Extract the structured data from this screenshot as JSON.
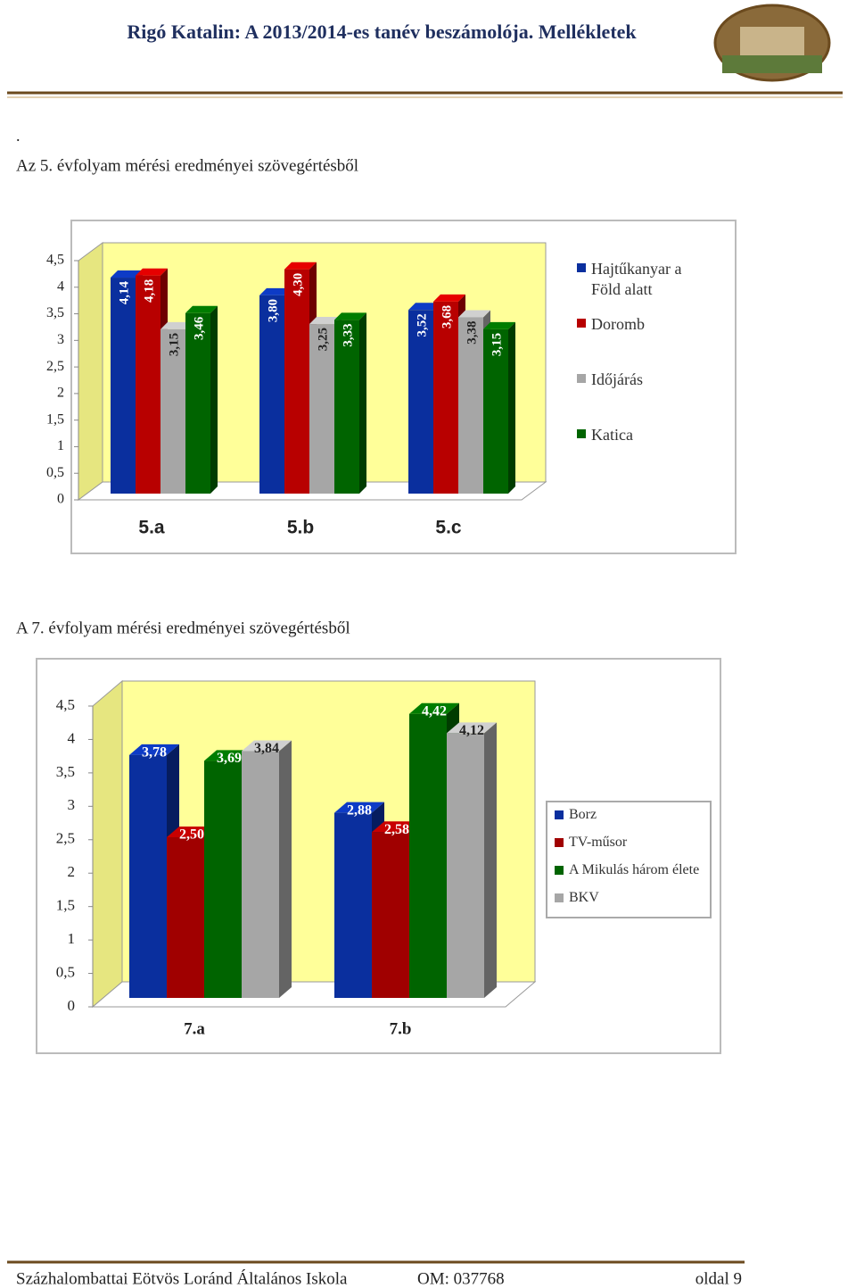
{
  "header": {
    "title": "Rigó Katalin: A 2013/2014-es tanév beszámolója. Mellékletek"
  },
  "dot": ".",
  "section_1": "Az 5. évfolyam mérési eredményei szövegértésből",
  "section_2": "A 7. évfolyam mérési eredményei szövegértésből",
  "chart_data": [
    {
      "type": "bar",
      "categories": [
        "5.a",
        "5.b",
        "5.c"
      ],
      "series": [
        {
          "name": "Hajtűkanyar a Föld alatt",
          "color": "#0a2f9e",
          "values": [
            4.14,
            3.8,
            3.52
          ],
          "value_labels": [
            "4,14",
            "3,80",
            "3,52"
          ]
        },
        {
          "name": "Doromb",
          "color": "#b80000",
          "values": [
            4.18,
            4.3,
            3.68
          ],
          "value_labels": [
            "4,18",
            "4,30",
            "3,68"
          ]
        },
        {
          "name": "Időjárás",
          "color": "#a6a6a6",
          "values": [
            3.15,
            3.25,
            3.38
          ],
          "value_labels": [
            "3,15",
            "3,25",
            "3,38"
          ]
        },
        {
          "name": "Katica",
          "color": "#006400",
          "values": [
            3.46,
            3.33,
            3.15
          ],
          "value_labels": [
            "3,46",
            "3,33",
            "3,15"
          ]
        }
      ],
      "ylim": [
        0,
        4.5
      ],
      "yticks": [
        0,
        {
          "value": 0.5,
          "label": "0,5"
        },
        1,
        {
          "value": 1.5,
          "label": "1,5"
        },
        2,
        {
          "value": 2.5,
          "label": "2,5"
        },
        3,
        {
          "value": 3.5,
          "label": "3,5"
        },
        4,
        {
          "value": 4.5,
          "label": "4,5"
        }
      ],
      "legend": "right"
    },
    {
      "type": "bar",
      "categories": [
        "7.a",
        "7.b"
      ],
      "series": [
        {
          "name": "Borz",
          "color": "#0a2f9e",
          "values": [
            3.78,
            2.88
          ],
          "value_labels": [
            "3,78",
            "2,88"
          ]
        },
        {
          "name": "TV-műsor",
          "color": "#a00000",
          "values": [
            2.5,
            2.58
          ],
          "value_labels": [
            "2,50",
            "2,58"
          ]
        },
        {
          "name": "A Mikulás három élete",
          "color": "#006400",
          "values": [
            3.69,
            4.42
          ],
          "value_labels": [
            "3,69",
            "4,42"
          ]
        },
        {
          "name": "BKV",
          "color": "#a6a6a6",
          "values": [
            3.84,
            4.12
          ],
          "value_labels": [
            "3,84",
            "4,12"
          ]
        }
      ],
      "ylim": [
        0,
        4.5
      ],
      "yticks": [
        0,
        {
          "value": 0.5,
          "label": "0,5"
        },
        1,
        {
          "value": 1.5,
          "label": "1,5"
        },
        2,
        {
          "value": 2.5,
          "label": "2,5"
        },
        3,
        {
          "value": 3.5,
          "label": "3,5"
        },
        4,
        {
          "value": 4.5,
          "label": "4,5"
        }
      ],
      "legend": "right"
    }
  ],
  "footer": {
    "school": "Százhalombattai Eötvös Loránd Általános Iskola",
    "om": "OM: 037768",
    "page": "oldal 9"
  }
}
